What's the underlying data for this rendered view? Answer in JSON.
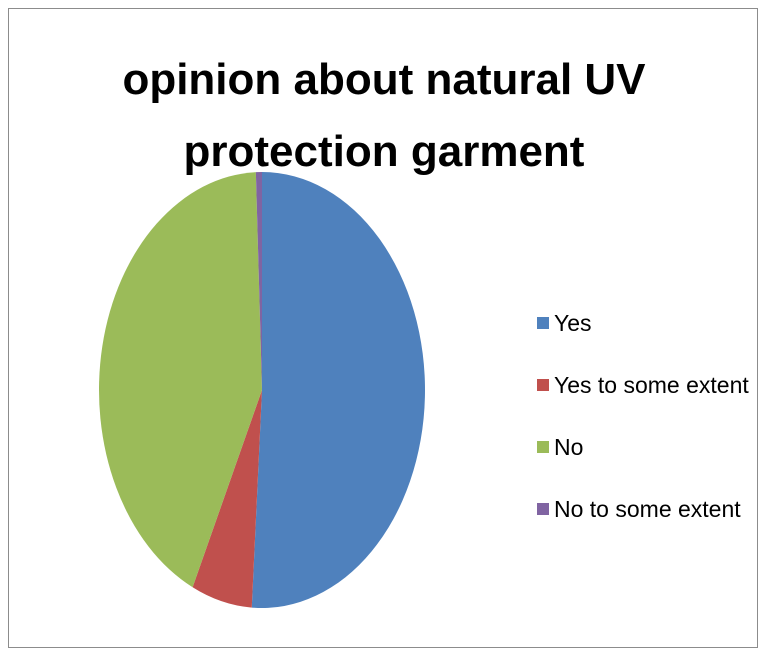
{
  "chart_data": {
    "type": "pie",
    "title_lines": [
      "opinion about natural UV",
      "protection garment"
    ],
    "title": "opinion about natural UV protection garment",
    "categories": [
      "Yes",
      "Yes to some extent",
      "No",
      "No to some extent"
    ],
    "values": [
      51,
      6,
      42.4,
      0.6
    ],
    "colors": [
      "#4f81bd",
      "#c0504d",
      "#9bbb59",
      "#8064a2"
    ],
    "legend_position": "right"
  }
}
